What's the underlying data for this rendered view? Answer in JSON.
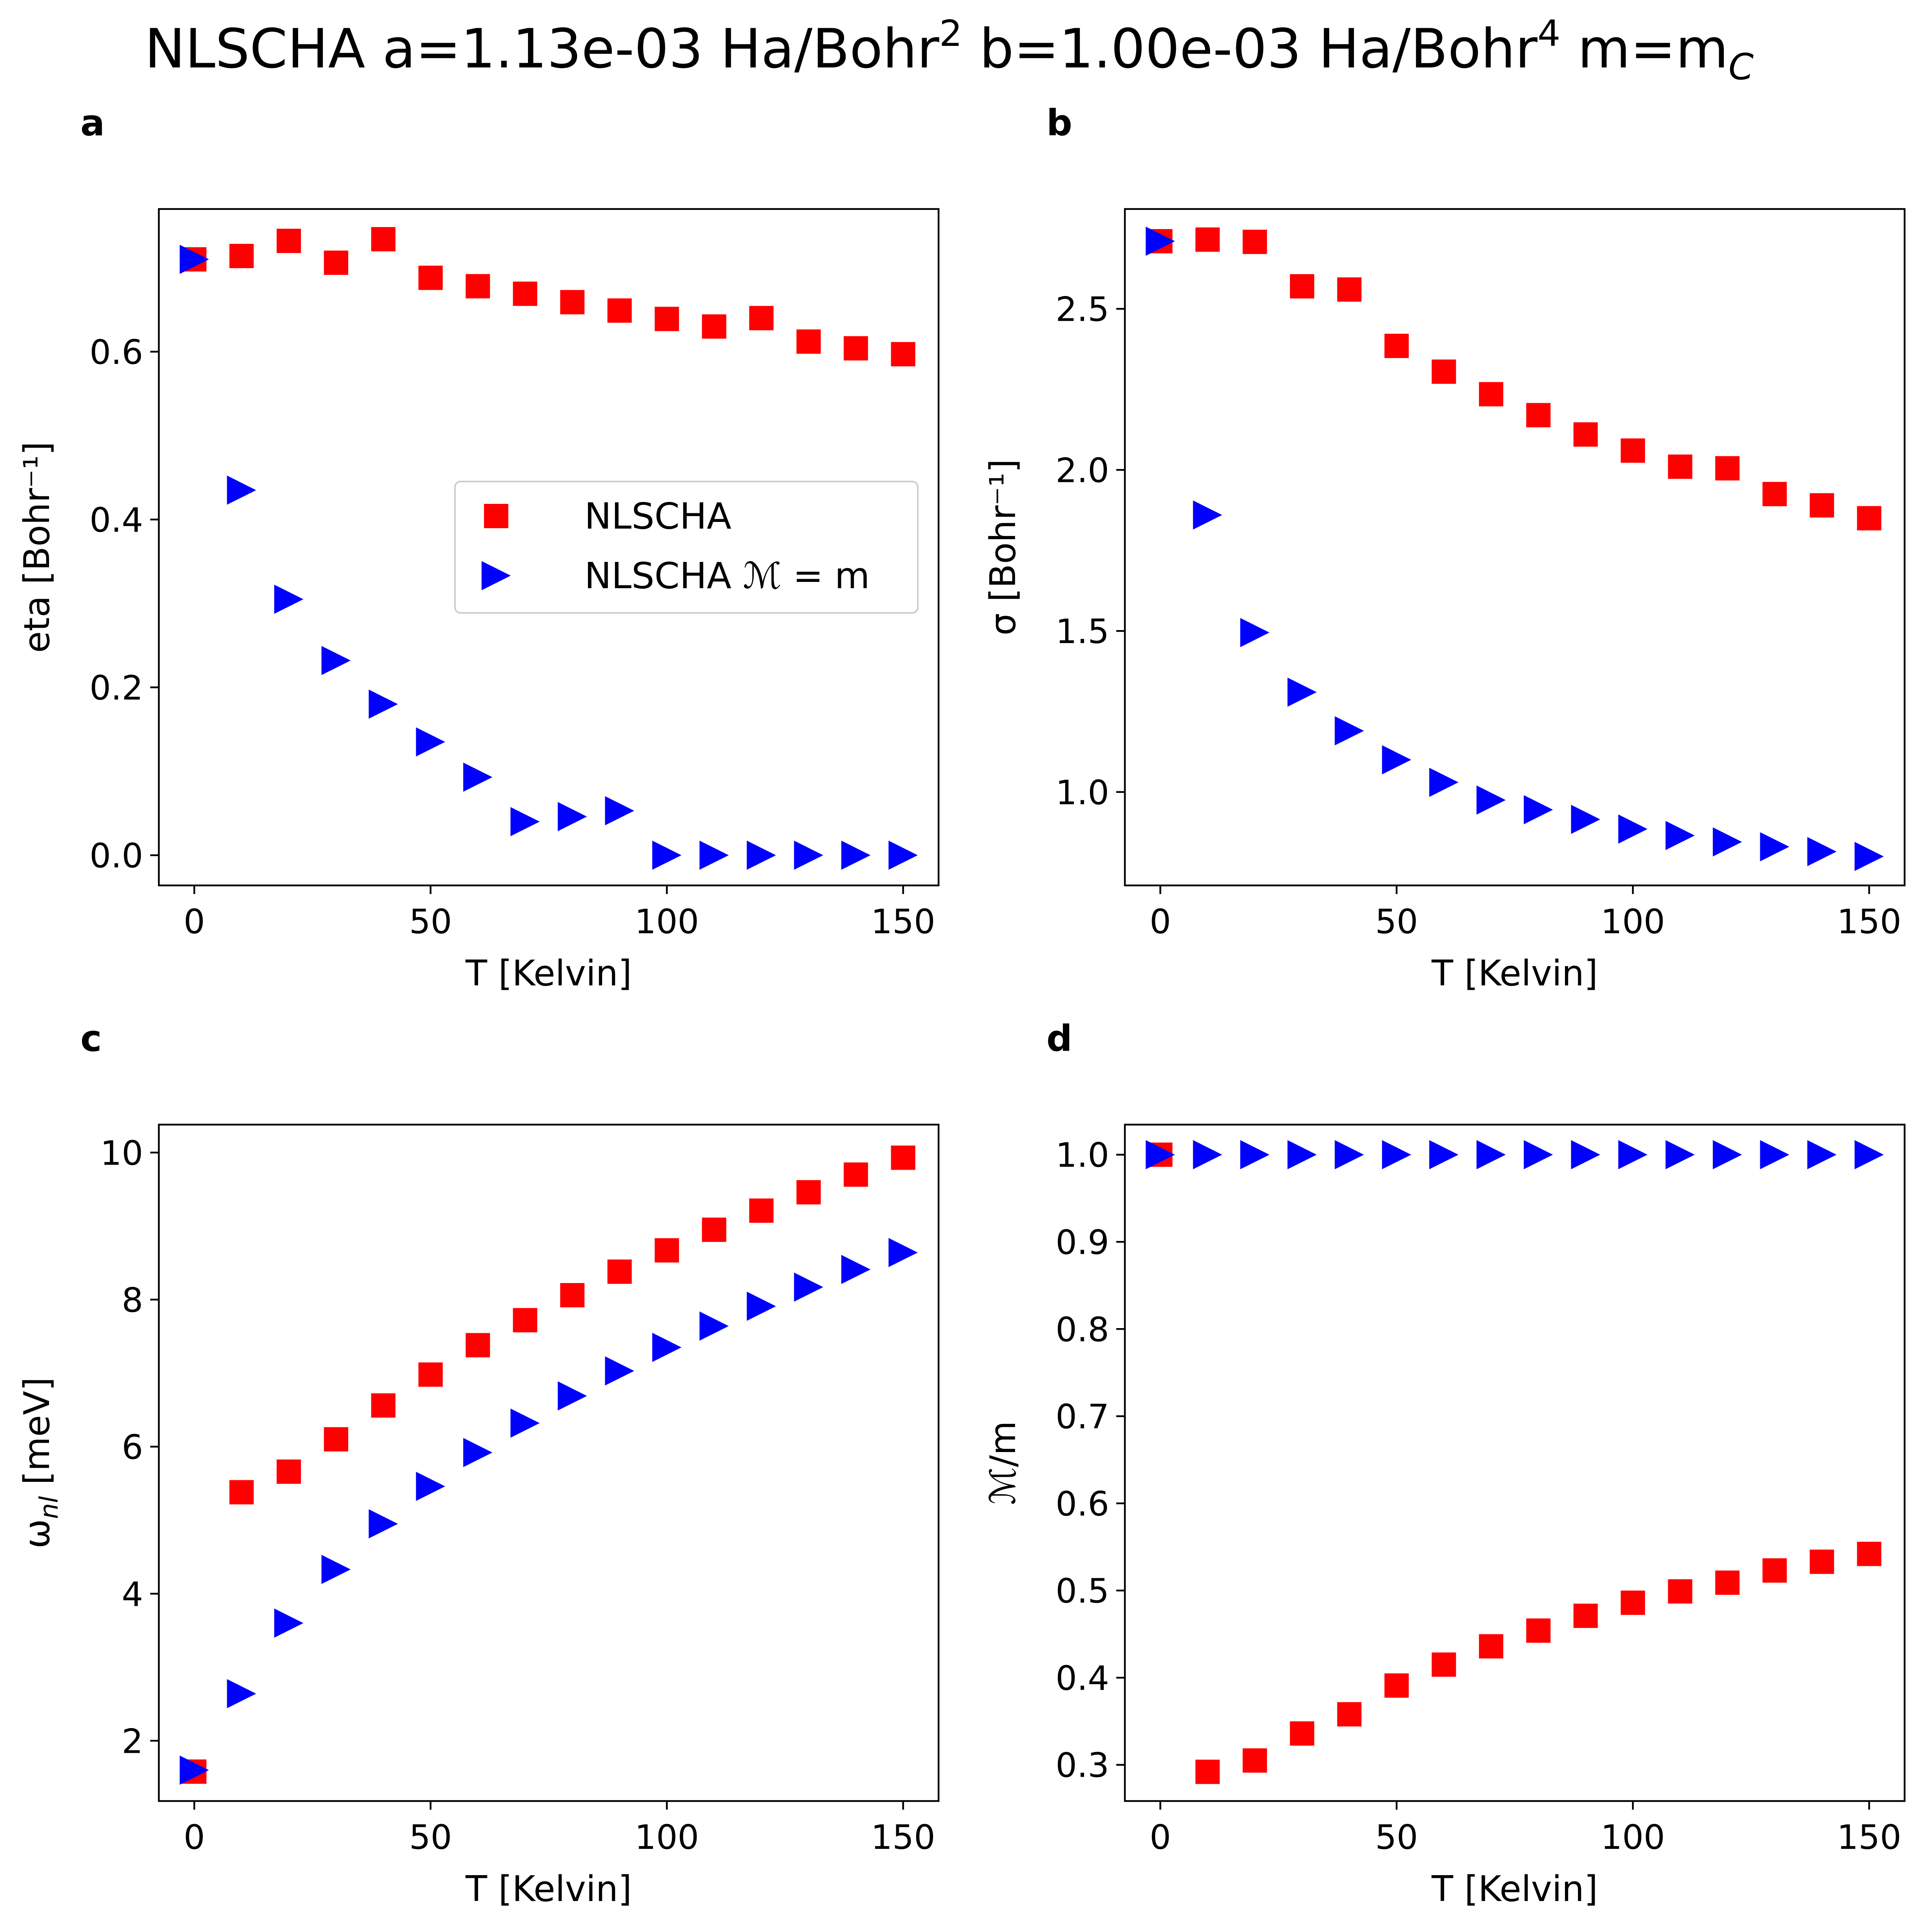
{
  "figure": {
    "title_main": "NLSCHA a=1.13e-03 Ha/Bohr",
    "title_sup1": "2",
    "title_mid": " b=1.00e-03 Ha/Bohr",
    "title_sup2": "4",
    "title_end": " m=m",
    "title_sub": "C"
  },
  "legend": {
    "entries": [
      "NLSCHA",
      "NLSCHA ℳ = m"
    ],
    "location": "center-right",
    "panel": "a"
  },
  "colors": {
    "nlscha": "#ff0000",
    "nlscha_m": "#0000ff",
    "axes": "#000000",
    "legend_border": "#cccccc"
  },
  "chart_data": [
    {
      "panel": "a",
      "type": "scatter",
      "xlabel": "T [Kelvin]",
      "ylabel": "eta [Bohr⁻¹]",
      "xlim": [
        -7.5,
        157.5
      ],
      "ylim": [
        -0.036,
        0.77
      ],
      "xticks": [
        0,
        50,
        100,
        150
      ],
      "xtick_labels": [
        "0",
        "50",
        "100",
        "150"
      ],
      "yticks": [
        0.0,
        0.2,
        0.4,
        0.6
      ],
      "ytick_labels": [
        "0.0",
        "0.2",
        "0.4",
        "0.6"
      ],
      "x": [
        0,
        10,
        20,
        30,
        40,
        50,
        60,
        70,
        80,
        90,
        100,
        110,
        120,
        130,
        140,
        150
      ],
      "series": [
        {
          "name": "NLSCHA",
          "marker": "square",
          "color": "#ff0000",
          "values": [
            0.71,
            0.714,
            0.732,
            0.706,
            0.734,
            0.688,
            0.678,
            0.669,
            0.659,
            0.649,
            0.639,
            0.63,
            0.64,
            0.612,
            0.604,
            0.597
          ]
        },
        {
          "name": "NLSCHA ℳ = m",
          "marker": "triangle-right",
          "color": "#0000ff",
          "values": [
            0.71,
            0.435,
            0.305,
            0.232,
            0.18,
            0.135,
            0.093,
            0.04,
            0.046,
            0.053,
            0.0,
            0.0,
            0.0,
            0.0,
            0.0,
            0.0
          ]
        }
      ]
    },
    {
      "panel": "b",
      "type": "scatter",
      "xlabel": "T [Kelvin]",
      "ylabel": "σ [Bohr⁻¹]",
      "xlim": [
        -7.5,
        157.5
      ],
      "ylim": [
        0.71,
        2.81
      ],
      "xticks": [
        0,
        50,
        100,
        150
      ],
      "xtick_labels": [
        "0",
        "50",
        "100",
        "150"
      ],
      "yticks": [
        1.0,
        1.5,
        2.0,
        2.5
      ],
      "ytick_labels": [
        "1.0",
        "1.5",
        "2.0",
        "2.5"
      ],
      "x": [
        0,
        10,
        20,
        30,
        40,
        50,
        60,
        70,
        80,
        90,
        100,
        110,
        120,
        130,
        140,
        150
      ],
      "series": [
        {
          "name": "NLSCHA",
          "marker": "square",
          "color": "#ff0000",
          "values": [
            2.71,
            2.715,
            2.708,
            2.57,
            2.56,
            2.385,
            2.305,
            2.235,
            2.17,
            2.11,
            2.06,
            2.01,
            2.005,
            1.925,
            1.89,
            1.85
          ]
        },
        {
          "name": "NLSCHA ℳ = m",
          "marker": "triangle-right",
          "color": "#0000ff",
          "values": [
            2.71,
            1.86,
            1.495,
            1.31,
            1.19,
            1.1,
            1.03,
            0.975,
            0.945,
            0.915,
            0.885,
            0.865,
            0.845,
            0.83,
            0.815,
            0.8
          ]
        }
      ]
    },
    {
      "panel": "c",
      "type": "scatter",
      "xlabel": "T [Kelvin]",
      "ylabel": "ω [meV]",
      "ylabel_sub": "nl",
      "xlim": [
        -7.5,
        157.5
      ],
      "ylim": [
        1.18,
        10.38
      ],
      "xticks": [
        0,
        50,
        100,
        150
      ],
      "xtick_labels": [
        "0",
        "50",
        "100",
        "150"
      ],
      "yticks": [
        2,
        4,
        6,
        8,
        10
      ],
      "ytick_labels": [
        "2",
        "4",
        "6",
        "8",
        "10"
      ],
      "x": [
        0,
        10,
        20,
        30,
        40,
        50,
        60,
        70,
        80,
        90,
        100,
        110,
        120,
        130,
        140,
        150
      ],
      "series": [
        {
          "name": "NLSCHA",
          "marker": "square",
          "color": "#ff0000",
          "values": [
            1.58,
            5.38,
            5.66,
            6.1,
            6.56,
            6.98,
            7.38,
            7.72,
            8.06,
            8.38,
            8.67,
            8.95,
            9.21,
            9.46,
            9.7,
            9.93
          ]
        },
        {
          "name": "NLSCHA ℳ = m",
          "marker": "triangle-right",
          "color": "#0000ff",
          "values": [
            1.6,
            2.64,
            3.6,
            4.33,
            4.95,
            5.46,
            5.92,
            6.32,
            6.69,
            7.03,
            7.35,
            7.64,
            7.91,
            8.17,
            8.41,
            8.64
          ]
        }
      ]
    },
    {
      "panel": "d",
      "type": "scatter",
      "xlabel": "T [Kelvin]",
      "ylabel": "ℳ/m",
      "xlim": [
        -7.5,
        157.5
      ],
      "ylim": [
        0.2585,
        1.0345
      ],
      "xticks": [
        0,
        50,
        100,
        150
      ],
      "xtick_labels": [
        "0",
        "50",
        "100",
        "150"
      ],
      "yticks": [
        0.3,
        0.4,
        0.5,
        0.6,
        0.7,
        0.8,
        0.9,
        1.0
      ],
      "ytick_labels": [
        "0.3",
        "0.4",
        "0.5",
        "0.6",
        "0.7",
        "0.8",
        "0.9",
        "1.0"
      ],
      "x": [
        0,
        10,
        20,
        30,
        40,
        50,
        60,
        70,
        80,
        90,
        100,
        110,
        120,
        130,
        140,
        150
      ],
      "series": [
        {
          "name": "NLSCHA",
          "marker": "square",
          "color": "#ff0000",
          "values": [
            1.0,
            0.292,
            0.305,
            0.336,
            0.358,
            0.391,
            0.415,
            0.436,
            0.454,
            0.471,
            0.486,
            0.499,
            0.509,
            0.523,
            0.533,
            0.542
          ]
        },
        {
          "name": "NLSCHA ℳ = m",
          "marker": "triangle-right",
          "color": "#0000ff",
          "values": [
            1.0,
            1.0,
            1.0,
            1.0,
            1.0,
            1.0,
            1.0,
            1.0,
            1.0,
            1.0,
            1.0,
            1.0,
            1.0,
            1.0,
            1.0,
            1.0
          ]
        }
      ]
    }
  ]
}
